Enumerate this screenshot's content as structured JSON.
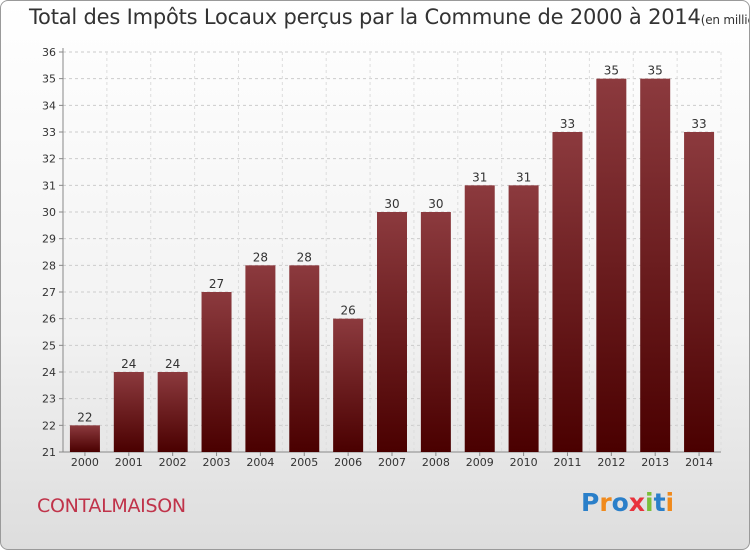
{
  "title": "Total des Impôts Locaux perçus par la Commune de 2000 à 2014",
  "title_unit": "(en milliers d'€)",
  "commune": "CONTALMAISON",
  "logo": {
    "letters": [
      "P",
      "r",
      "o",
      "x",
      "i",
      "t",
      "i"
    ],
    "colors": [
      "#2a7fc9",
      "#f08a1c",
      "#2a7fc9",
      "#e8323c",
      "#7bbf3a",
      "#2a7fc9",
      "#f08a1c"
    ]
  },
  "colors": {
    "bar_top": "#8c3a3e",
    "bar_bottom": "#4a0000",
    "commune_text": "#c0334a"
  },
  "chart_data": {
    "type": "bar",
    "categories": [
      "2000",
      "2001",
      "2002",
      "2003",
      "2004",
      "2005",
      "2006",
      "2007",
      "2008",
      "2009",
      "2010",
      "2011",
      "2012",
      "2013",
      "2014"
    ],
    "values": [
      22,
      24,
      24,
      27,
      28,
      28,
      26,
      30,
      30,
      31,
      31,
      33,
      35,
      35,
      33
    ],
    "ylim": [
      21,
      36
    ],
    "yticks": [
      21,
      22,
      23,
      24,
      25,
      26,
      27,
      28,
      29,
      30,
      31,
      32,
      33,
      34,
      35,
      36
    ],
    "grid": true,
    "data_labels": true
  }
}
